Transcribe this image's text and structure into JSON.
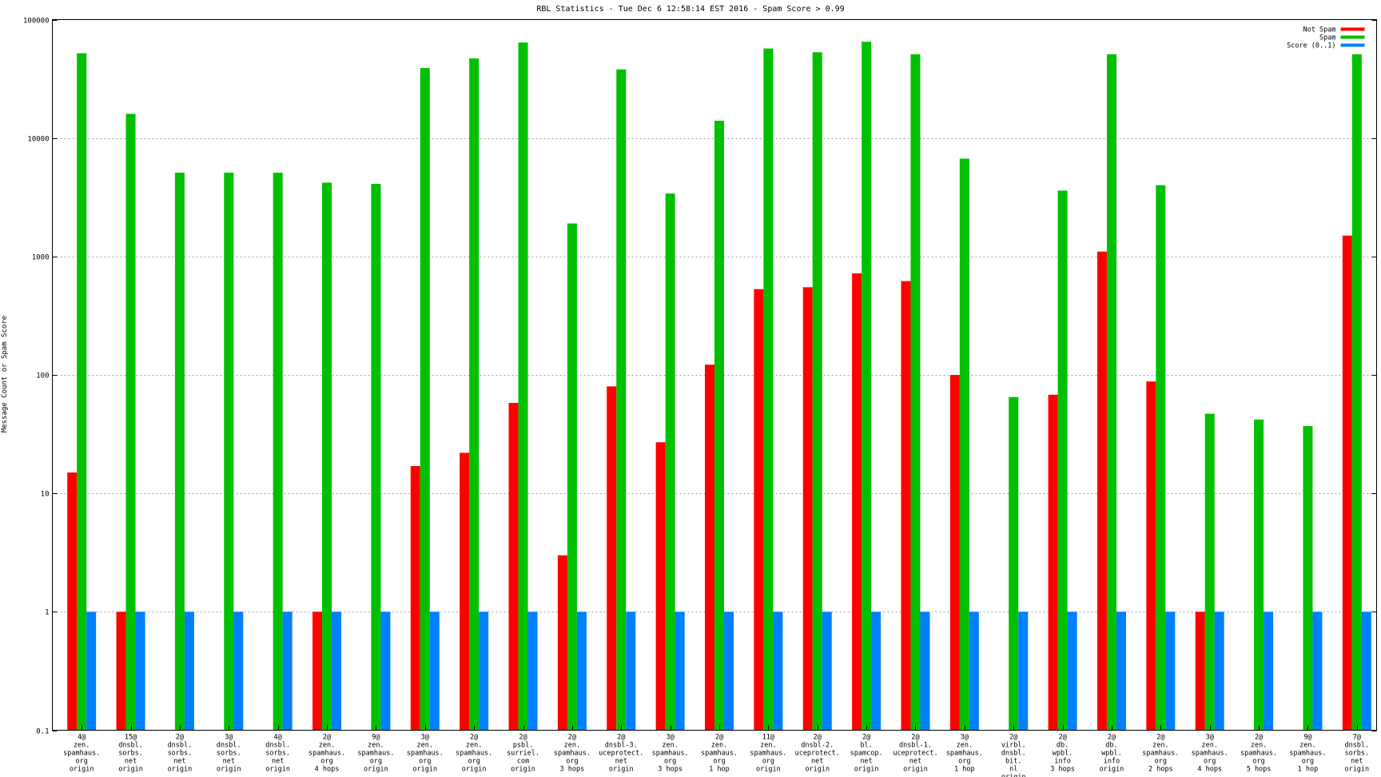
{
  "chart_data": {
    "type": "bar",
    "title": "RBL Statistics - Tue Dec  6 12:58:14 EST 2016 - Spam Score > 0.99",
    "xlabel": "",
    "ylabel": "Message Count or Spam Score",
    "yscale": "log",
    "ylim": [
      0.1,
      100000
    ],
    "yticks": [
      "0.1",
      "1",
      "10",
      "100",
      "1000",
      "10000",
      "100000"
    ],
    "grid": true,
    "legend_position": "top-right",
    "categories": [
      [
        "4@",
        "zen.",
        "spamhaus.",
        "org",
        "origin"
      ],
      [
        "15@",
        "dnsbl.",
        "sorbs.",
        "net",
        "origin"
      ],
      [
        "2@",
        "dnsbl.",
        "sorbs.",
        "net",
        "origin"
      ],
      [
        "3@",
        "dnsbl.",
        "sorbs.",
        "net",
        "origin"
      ],
      [
        "4@",
        "dnsbl.",
        "sorbs.",
        "net",
        "origin"
      ],
      [
        "2@",
        "zen.",
        "spamhaus.",
        "org",
        "4 hops"
      ],
      [
        "9@",
        "zen.",
        "spamhaus.",
        "org",
        "origin"
      ],
      [
        "3@",
        "zen.",
        "spamhaus.",
        "org",
        "origin"
      ],
      [
        "2@",
        "zen.",
        "spamhaus.",
        "org",
        "origin"
      ],
      [
        "2@",
        "psbl.",
        "surriel.",
        "com",
        "origin"
      ],
      [
        "2@",
        "zen.",
        "spamhaus.",
        "org",
        "3 hops"
      ],
      [
        "2@",
        "dnsbl-3.",
        "uceprotect.",
        "net",
        "origin"
      ],
      [
        "3@",
        "zen.",
        "spamhaus.",
        "org",
        "3 hops"
      ],
      [
        "2@",
        "zen.",
        "spamhaus.",
        "org",
        "1 hop"
      ],
      [
        "11@",
        "zen.",
        "spamhaus.",
        "org",
        "origin"
      ],
      [
        "2@",
        "dnsbl-2.",
        "uceprotect.",
        "net",
        "origin"
      ],
      [
        "2@",
        "bl.",
        "spamcop.",
        "net",
        "origin"
      ],
      [
        "2@",
        "dnsbl-1.",
        "uceprotect.",
        "net",
        "origin"
      ],
      [
        "3@",
        "zen.",
        "spamhaus.",
        "org",
        "1 hop"
      ],
      [
        "2@",
        "virbl.",
        "dnsbl.",
        "bit.",
        "nl",
        "origin"
      ],
      [
        "2@",
        "db.",
        "wpbl.",
        "info",
        "3 hops"
      ],
      [
        "2@",
        "db.",
        "wpbl.",
        "info",
        "origin"
      ],
      [
        "2@",
        "zen.",
        "spamhaus.",
        "org",
        "2 hops"
      ],
      [
        "3@",
        "zen.",
        "spamhaus.",
        "org",
        "4 hops"
      ],
      [
        "2@",
        "zen.",
        "spamhaus.",
        "org",
        "5 hops"
      ],
      [
        "9@",
        "zen.",
        "spamhaus.",
        "org",
        "1 hop"
      ],
      [
        "7@",
        "dnsbl.",
        "sorbs.",
        "net",
        "origin"
      ]
    ],
    "series": [
      {
        "name": "Not Spam",
        "color": "#ff0000",
        "values": [
          15,
          1,
          null,
          null,
          null,
          1,
          null,
          17,
          22,
          58,
          3,
          80,
          27,
          122,
          530,
          550,
          720,
          620,
          100,
          null,
          68,
          1100,
          88,
          1,
          null,
          null,
          1500
        ]
      },
      {
        "name": "Spam",
        "color": "#00c000",
        "values": [
          52000,
          16000,
          5100,
          5100,
          5100,
          4200,
          4100,
          39000,
          47000,
          64000,
          1900,
          38000,
          3400,
          14000,
          57000,
          53000,
          65000,
          51000,
          6700,
          65,
          3600,
          51000,
          4000,
          47,
          42,
          37,
          51000
        ]
      },
      {
        "name": "Score (0..1)",
        "color": "#0080ff",
        "values": [
          1,
          1,
          1,
          1,
          1,
          1,
          1,
          1,
          1,
          1,
          1,
          1,
          1,
          1,
          1,
          1,
          1,
          1,
          1,
          1,
          1,
          1,
          1,
          1,
          1,
          1,
          1
        ]
      }
    ]
  }
}
